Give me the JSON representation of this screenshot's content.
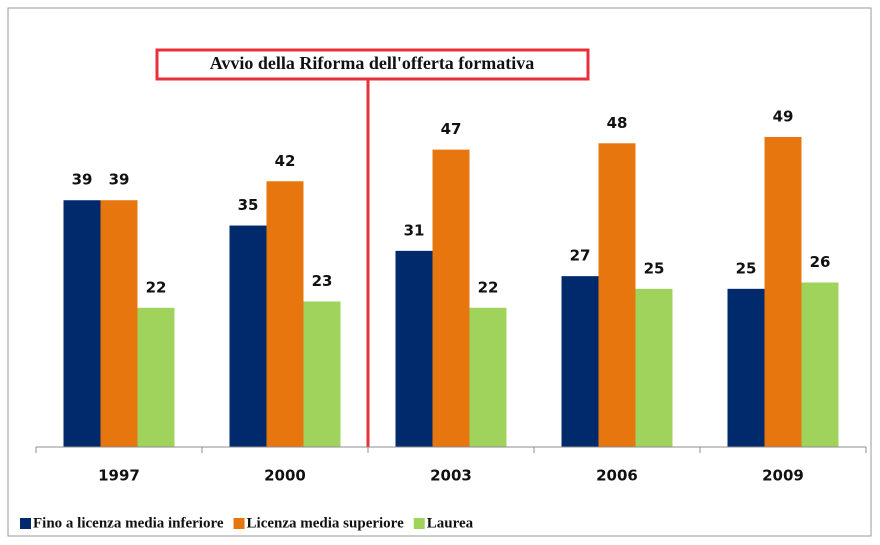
{
  "chart_data": {
    "type": "bar",
    "annotation": "Avvio della Riforma dell'offerta formativa",
    "categories": [
      "1997",
      "2000",
      "2003",
      "2006",
      "2009"
    ],
    "series": [
      {
        "name": "Fino a licenza media inferiore",
        "color": "#002a6c",
        "values": [
          39,
          35,
          31,
          27,
          25
        ]
      },
      {
        "name": "Licenza media superiore",
        "color": "#e8760f",
        "values": [
          39,
          42,
          47,
          48,
          49
        ]
      },
      {
        "name": "Laurea",
        "color": "#9fd35c",
        "values": [
          22,
          23,
          22,
          25,
          26
        ]
      }
    ],
    "ylim": [
      0,
      55
    ],
    "legend": "bottom"
  }
}
